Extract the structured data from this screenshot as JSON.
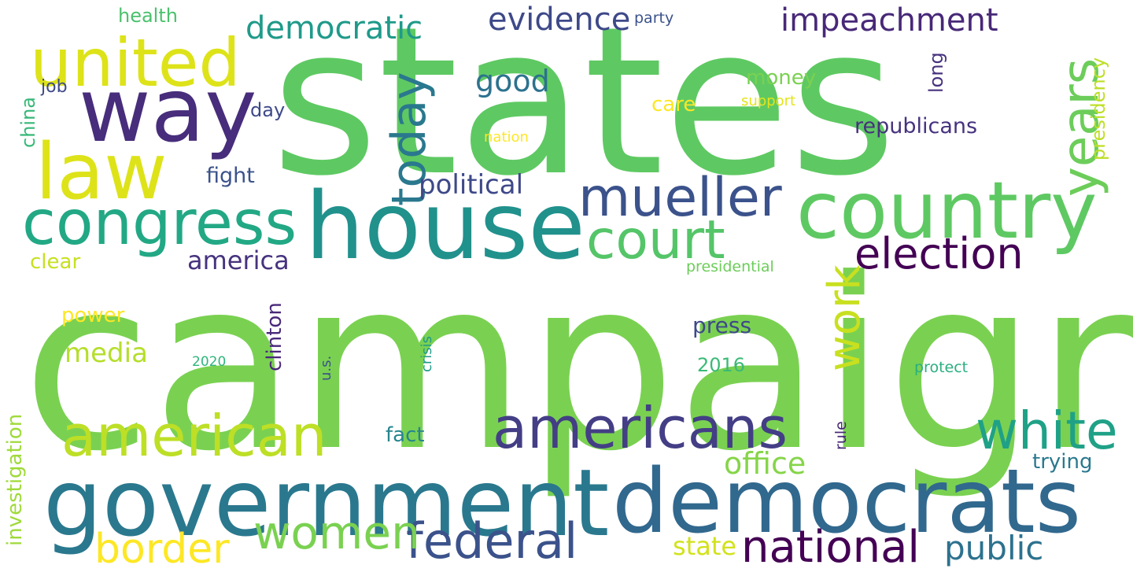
{
  "word_cloud": {
    "words": {
      "states": "states",
      "campaign": "campaign",
      "government": "government",
      "democrats": "democrats",
      "house": "house",
      "country": "country",
      "way": "way",
      "congress": "congress",
      "law": "law",
      "united": "united",
      "american": "american",
      "americans": "americans",
      "mueller": "mueller",
      "court": "court",
      "federal": "federal",
      "white": "white",
      "national": "national",
      "election": "election",
      "women": "women",
      "border": "border",
      "years": "years",
      "today": "today",
      "work": "work",
      "public": "public",
      "office": "office",
      "state": "state",
      "democratic": "democratic",
      "evidence": "evidence",
      "impeachment": "impeachment",
      "political": "political",
      "america": "america",
      "good": "good",
      "media": "media",
      "republicans": "republicans",
      "money": "money",
      "press": "press",
      "fight": "fight",
      "trying": "trying",
      "care": "care",
      "fact": "fact",
      "clear": "clear",
      "power": "power",
      "health": "health",
      "job": "job",
      "day": "day",
      "y2016": "2016",
      "party": "party",
      "support": "support",
      "nation": "nation",
      "presidential": "presidential",
      "y2020": "2020",
      "protect": "protect",
      "china": "china",
      "investigation": "investigation",
      "clinton": "clinton",
      "us": "u.s.",
      "crisis": "crisis",
      "long": "long",
      "presidency": "presidency",
      "rule": "rule"
    },
    "colors": {
      "background": "#ffffff",
      "palette": [
        "#440154",
        "#482878",
        "#3e4989",
        "#31688e",
        "#26828e",
        "#1f9e89",
        "#35b779",
        "#6ece58",
        "#b5de2b",
        "#fde725"
      ]
    }
  }
}
